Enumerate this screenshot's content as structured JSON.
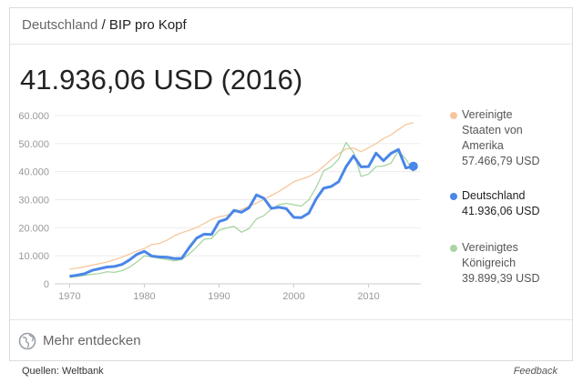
{
  "header": {
    "entity": "Deutschland",
    "separator": "/",
    "topic": "BIP pro Kopf"
  },
  "headline": "41.936,06 USD (2016)",
  "chart_data": {
    "type": "line",
    "x": [
      1970,
      1971,
      1972,
      1973,
      1974,
      1975,
      1976,
      1977,
      1978,
      1979,
      1980,
      1981,
      1982,
      1983,
      1984,
      1985,
      1986,
      1987,
      1988,
      1989,
      1990,
      1991,
      1992,
      1993,
      1994,
      1995,
      1996,
      1997,
      1998,
      1999,
      2000,
      2001,
      2002,
      2003,
      2004,
      2005,
      2006,
      2007,
      2008,
      2009,
      2010,
      2011,
      2012,
      2013,
      2014,
      2015,
      2016
    ],
    "series": [
      {
        "name": "Vereinigte Staaten von Amerika",
        "color": "#f6c79d",
        "last_value_label": "57.466,79 USD",
        "values": [
          5200,
          5600,
          6100,
          6700,
          7200,
          7800,
          8600,
          9500,
          10600,
          11700,
          12600,
          14000,
          14400,
          15500,
          17100,
          18200,
          19100,
          20100,
          21500,
          23000,
          23900,
          24400,
          25500,
          26400,
          27700,
          28800,
          30100,
          31500,
          32900,
          34600,
          36400,
          37300,
          38200,
          39700,
          41900,
          44300,
          46400,
          48100,
          48400,
          47100,
          48500,
          50000,
          51800,
          53100,
          55000,
          56800,
          57466.79
        ]
      },
      {
        "name": "Deutschland",
        "color": "#4a86e8",
        "highlight": true,
        "last_value_label": "41.936,06 USD",
        "values": [
          2700,
          3100,
          3600,
          4800,
          5400,
          6000,
          6200,
          6900,
          8500,
          10500,
          11600,
          9900,
          9600,
          9500,
          9000,
          9100,
          12900,
          16300,
          17700,
          17600,
          22200,
          23100,
          26200,
          25500,
          27100,
          31700,
          30500,
          26900,
          27300,
          26800,
          23700,
          23600,
          25200,
          30300,
          34100,
          34700,
          36400,
          41800,
          45600,
          41700,
          41800,
          46600,
          43900,
          46500,
          47900,
          41300,
          41936.06
        ]
      },
      {
        "name": "Vereinigtes Königreich",
        "color": "#a8d5a2",
        "last_value_label": "39.899,39 USD",
        "values": [
          2300,
          2600,
          3000,
          3400,
          3700,
          4300,
          4100,
          4700,
          5900,
          7800,
          10000,
          9600,
          9100,
          8700,
          8200,
          8700,
          10600,
          13100,
          15900,
          16200,
          19100,
          19900,
          20500,
          18400,
          19700,
          23100,
          24300,
          26700,
          28200,
          28700,
          28200,
          27700,
          29900,
          34400,
          40300,
          41700,
          44500,
          50400,
          46800,
          38300,
          39100,
          41800,
          42000,
          43000,
          47400,
          44500,
          39899.39
        ]
      }
    ],
    "xlim": [
      1968,
      2017
    ],
    "xticks": [
      1970,
      1980,
      1990,
      2000,
      2010
    ],
    "ylim": [
      0,
      60000
    ],
    "yticks": [
      0,
      {
        "value": 10000,
        "label": "10.000"
      },
      {
        "value": 20000,
        "label": "20.000"
      },
      {
        "value": 30000,
        "label": "30.000"
      },
      {
        "value": 40000,
        "label": "40.000"
      },
      {
        "value": 50000,
        "label": "50.000"
      },
      {
        "value": 60000,
        "label": "60.000"
      }
    ],
    "grid": true,
    "legend": "right"
  },
  "footer": {
    "explore": "Mehr entdecken",
    "source": "Quellen: Weltbank",
    "feedback": "Feedback"
  }
}
